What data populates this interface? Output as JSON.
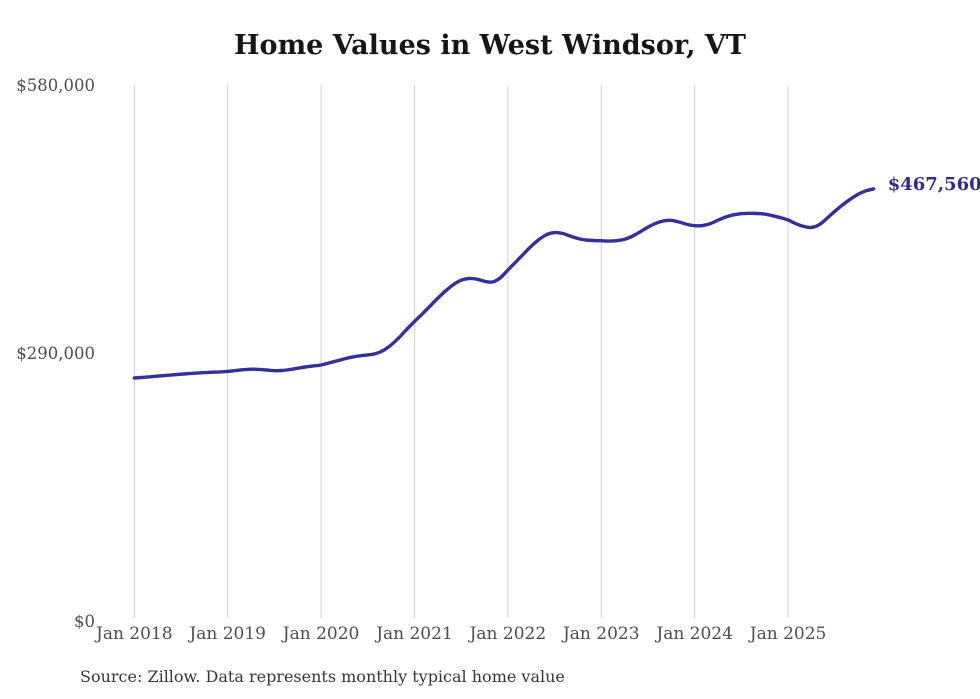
{
  "source_note": "Source: Zillow. Data represents monthly typical home value",
  "colors": {
    "line": "#34309b",
    "end_label": "#2e2b90",
    "axis_text": "#4d4d4d",
    "gridline": "#cfcfcf",
    "title_text": "#161616",
    "background": "#ffffff"
  },
  "chart_data": {
    "type": "line",
    "title": "Home Values in West Windsor, VT",
    "xlabel": "",
    "ylabel": "",
    "ylim": [
      0,
      580000
    ],
    "grid": "vertical-only",
    "legend": "none",
    "y_ticks": [
      {
        "value": 0,
        "label": "$0"
      },
      {
        "value": 290000,
        "label": "$290,000"
      },
      {
        "value": 580000,
        "label": "$580,000"
      }
    ],
    "x_axis": {
      "tick_month_indices": [
        0,
        12,
        24,
        36,
        48,
        60,
        72,
        84
      ],
      "tick_labels": [
        "Jan 2018",
        "Jan 2019",
        "Jan 2020",
        "Jan 2021",
        "Jan 2022",
        "Jan 2023",
        "Jan 2024",
        "Jan 2025"
      ]
    },
    "series": [
      {
        "name": "Monthly typical home value",
        "start_month": "2018-01",
        "frequency": "monthly",
        "values": [
          263000,
          263600,
          264300,
          265000,
          265700,
          266400,
          267100,
          267700,
          268300,
          268800,
          269200,
          269600,
          270100,
          271000,
          271900,
          272500,
          272300,
          271600,
          270800,
          271100,
          272100,
          273500,
          274900,
          276000,
          277000,
          279200,
          281400,
          283600,
          285600,
          287000,
          287900,
          289300,
          292800,
          298800,
          306500,
          315500,
          324100,
          332300,
          340800,
          349400,
          357200,
          364000,
          368800,
          370600,
          369900,
          367600,
          366800,
          371200,
          379800,
          388400,
          397000,
          405500,
          412800,
          418200,
          420300,
          419400,
          416600,
          413900,
          412300,
          411700,
          411500,
          411100,
          411500,
          413000,
          416400,
          421200,
          426200,
          430400,
          432900,
          433500,
          431800,
          429200,
          427700,
          427900,
          429900,
          433700,
          437200,
          439500,
          440700,
          441200,
          441000,
          440300,
          438600,
          436500,
          433900,
          429900,
          427000,
          425800,
          428800,
          435800,
          443300,
          450300,
          456400,
          461800,
          465500,
          467560
        ]
      }
    ],
    "last_point": {
      "month": "2025-12",
      "value": 467560,
      "label": "$467,560"
    }
  }
}
